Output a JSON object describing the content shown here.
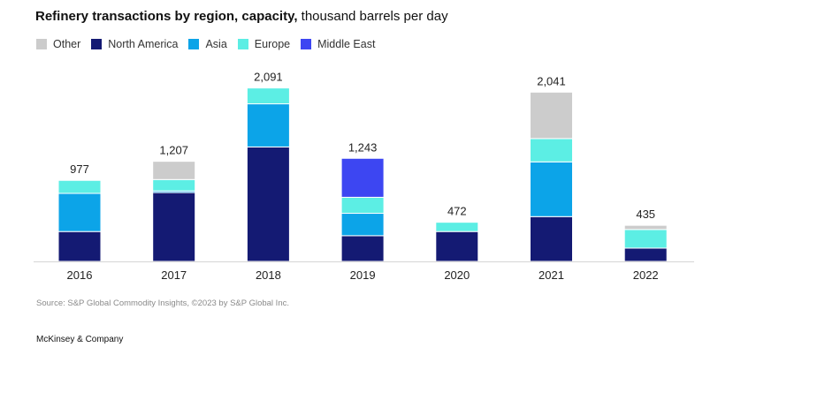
{
  "title": {
    "bold": "Refinery transactions by region, capacity,",
    "regular": "thousand barrels per day"
  },
  "legend": [
    {
      "name": "Other",
      "color": "#cccccc"
    },
    {
      "name": "North America",
      "color": "#141a73"
    },
    {
      "name": "Asia",
      "color": "#0ca4e8"
    },
    {
      "name": "Europe",
      "color": "#5ceee4"
    },
    {
      "name": "Middle East",
      "color": "#3d46f2"
    }
  ],
  "chart_data": {
    "type": "bar",
    "stacked": true,
    "categories": [
      "2016",
      "2017",
      "2018",
      "2019",
      "2020",
      "2021",
      "2022"
    ],
    "totals": [
      "977",
      "1,207",
      "2,091",
      "1,243",
      "472",
      "2,041",
      "435"
    ],
    "series": [
      {
        "name": "North America",
        "color": "#141a73",
        "values": [
          360,
          830,
          1380,
          310,
          360,
          540,
          160
        ]
      },
      {
        "name": "Asia",
        "color": "#0ca4e8",
        "values": [
          460,
          20,
          520,
          270,
          0,
          660,
          0
        ]
      },
      {
        "name": "Europe",
        "color": "#5ceee4",
        "values": [
          157,
          137,
          191,
          193,
          112,
          281,
          225
        ]
      },
      {
        "name": "Middle East",
        "color": "#3d46f2",
        "values": [
          0,
          0,
          0,
          470,
          0,
          0,
          0
        ]
      },
      {
        "name": "Other",
        "color": "#cccccc",
        "values": [
          0,
          220,
          0,
          0,
          0,
          560,
          50
        ]
      }
    ],
    "ylim": [
      0,
      2300
    ]
  },
  "source": "Source: S&P Global Commodity Insights, ©2023 by S&P Global Inc.",
  "brand": "McKinsey & Company"
}
